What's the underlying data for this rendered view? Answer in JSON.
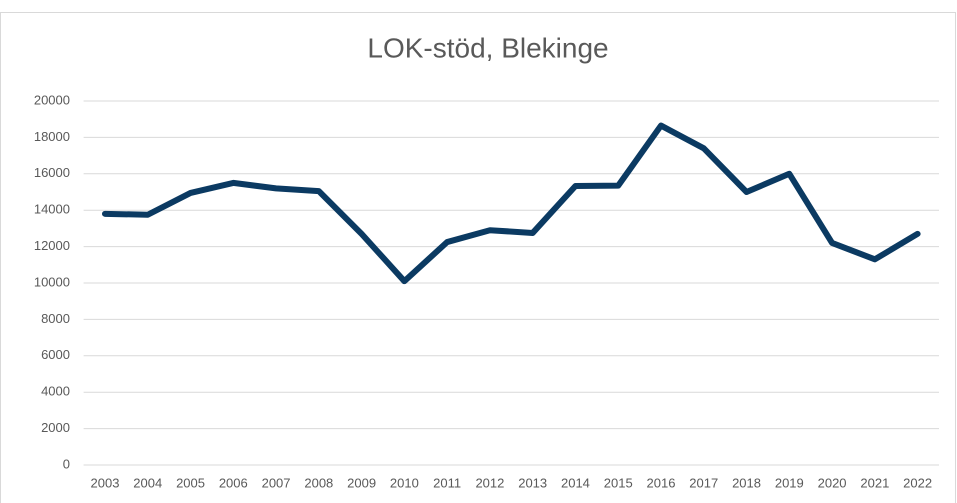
{
  "chart_data": {
    "type": "line",
    "title": "LOK-stöd, Blekinge",
    "categories": [
      "2003",
      "2004",
      "2005",
      "2006",
      "2007",
      "2008",
      "2009",
      "2010",
      "2011",
      "2012",
      "2013",
      "2014",
      "2015",
      "2016",
      "2017",
      "2018",
      "2019",
      "2020",
      "2021",
      "2022"
    ],
    "series": [
      {
        "name": "LOK-stöd",
        "color": "#0b3a62",
        "values": [
          13800,
          13750,
          14950,
          15500,
          15200,
          15050,
          12700,
          10100,
          12250,
          12900,
          12750,
          15330,
          15350,
          18650,
          17400,
          15000,
          16000,
          12200,
          11300,
          12700
        ]
      }
    ],
    "ylim": [
      0,
      20000
    ],
    "yticks": [
      0,
      2000,
      4000,
      6000,
      8000,
      10000,
      12000,
      14000,
      16000,
      18000,
      20000
    ],
    "grid": true,
    "legend": false
  }
}
